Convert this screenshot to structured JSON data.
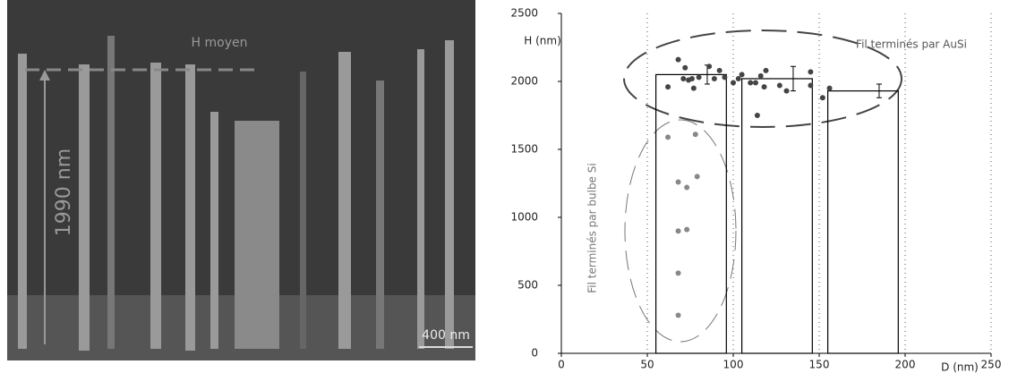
{
  "image": {
    "mean_label": "H moyen",
    "height_label": "1990 nm",
    "scale_label": "400 nm"
  },
  "chart_data": {
    "type": "scatter",
    "x_label": "D (nm)",
    "y_label": "H (nm)",
    "annotations": [
      "Fil terminés par AuSi",
      "Fil terminés par bulbe Si"
    ],
    "xlim": [
      0,
      250
    ],
    "xticks": [
      0,
      50,
      100,
      150,
      200,
      250
    ],
    "ylim": [
      0,
      2500
    ],
    "yticks": [
      0,
      500,
      1000,
      1500,
      2000,
      2500
    ],
    "grid": true,
    "series": [
      {
        "color": "#444444",
        "x": [
          62,
          68,
          72,
          71,
          74,
          77,
          76,
          80,
          86,
          89,
          92,
          95,
          100,
          103,
          105,
          110,
          113,
          116,
          118,
          119,
          114,
          127,
          131,
          145,
          145,
          152,
          156
        ],
        "values": [
          1960,
          2160,
          2100,
          2020,
          2010,
          1950,
          2020,
          2030,
          2110,
          2020,
          2080,
          2030,
          1990,
          2020,
          2050,
          1990,
          1990,
          2040,
          1960,
          2080,
          1750,
          1970,
          1930,
          2070,
          1970,
          1880,
          1950
        ]
      },
      {
        "color": "#888888",
        "x": [
          62,
          78,
          68,
          73,
          79,
          68,
          73,
          68,
          68
        ],
        "values": [
          1590,
          1610,
          1260,
          1220,
          1300,
          900,
          910,
          590,
          280
        ]
      }
    ],
    "bars": {
      "x0": [
        55,
        105,
        155
      ],
      "x1": [
        96,
        146,
        196
      ],
      "values": [
        2050,
        2020,
        1930
      ],
      "errors": [
        70,
        90,
        50
      ]
    }
  }
}
